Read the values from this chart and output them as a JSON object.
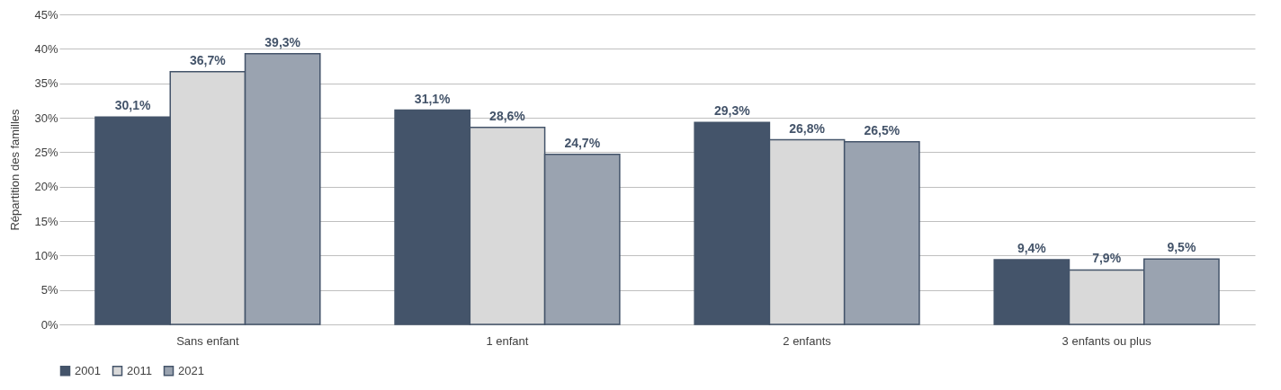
{
  "chart_data": {
    "type": "bar",
    "ylabel": "Répartition des familles",
    "categories": [
      "Sans enfant",
      "1 enfant",
      "2 enfants",
      "3 enfants ou plus"
    ],
    "series": [
      {
        "name": "2001",
        "color": "#44546a",
        "values": [
          30.1,
          31.1,
          29.3,
          9.4
        ],
        "value_labels": [
          "30,1%",
          "31,1%",
          "29,3%",
          "9,4%"
        ]
      },
      {
        "name": "2011",
        "color": "#d9d9d9",
        "values": [
          36.7,
          28.6,
          26.8,
          7.9
        ],
        "value_labels": [
          "36,7%",
          "28,6%",
          "26,8%",
          "7,9%"
        ]
      },
      {
        "name": "2021",
        "color": "#9aa3b0",
        "values": [
          39.3,
          24.7,
          26.5,
          9.5
        ],
        "value_labels": [
          "39,3%",
          "24,7%",
          "26,5%",
          "9,5%"
        ]
      }
    ],
    "ylim": [
      0,
      45
    ],
    "yticks": [
      {
        "value": 0,
        "label": "0%"
      },
      {
        "value": 5,
        "label": "5%"
      },
      {
        "value": 10,
        "label": "10%"
      },
      {
        "value": 15,
        "label": "15%"
      },
      {
        "value": 20,
        "label": "20%"
      },
      {
        "value": 25,
        "label": "25%"
      },
      {
        "value": 30,
        "label": "30%"
      },
      {
        "value": 35,
        "label": "35%"
      },
      {
        "value": 40,
        "label": "40%"
      },
      {
        "value": 45,
        "label": "45%"
      }
    ],
    "grid": "y",
    "legend": "bottom"
  }
}
